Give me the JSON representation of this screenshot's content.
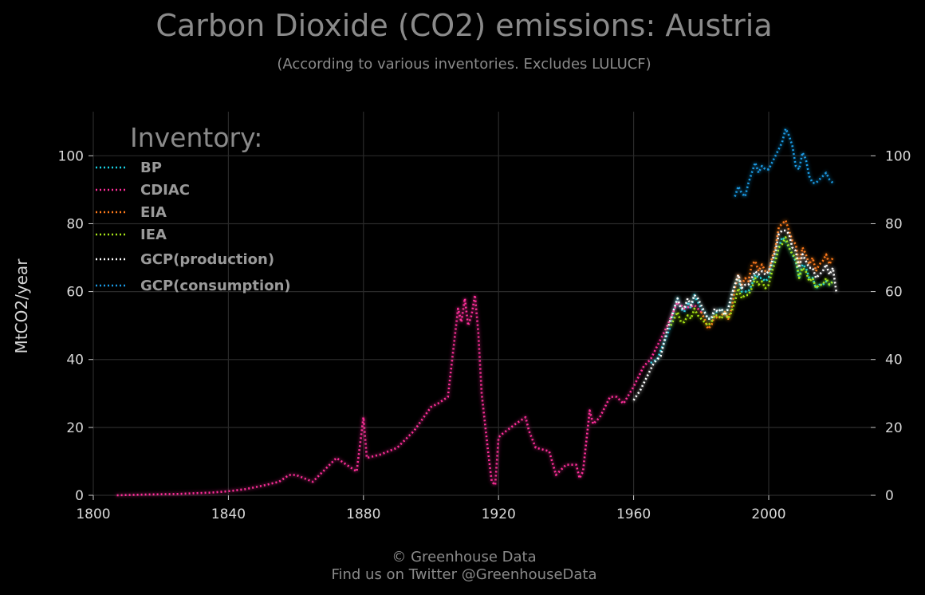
{
  "chart_data": {
    "type": "line",
    "title": "Carbon Dioxide (CO2) emissions: Austria",
    "subtitle": "(According to various inventories. Excludes LULUCF)",
    "xlabel": "",
    "ylabel": "MtCO2/year",
    "xlim": [
      1800,
      2030
    ],
    "ylim": [
      0,
      113
    ],
    "x_ticks": [
      1800,
      1840,
      1880,
      1920,
      1960,
      2000
    ],
    "y_ticks": [
      0,
      20,
      40,
      60,
      80,
      100
    ],
    "grid": true,
    "legend_title": "Inventory:",
    "legend_position": "top-left",
    "series": [
      {
        "name": "BP",
        "color": "#19d3e6",
        "x": [
          1965,
          1967,
          1969,
          1971,
          1972,
          1973,
          1974,
          1975,
          1976,
          1977,
          1978,
          1979,
          1980,
          1981,
          1982,
          1983,
          1984,
          1985,
          1986,
          1987,
          1988,
          1989,
          1990,
          1991,
          1992,
          1993,
          1994,
          1995,
          1996,
          1997,
          1998,
          1999,
          2000,
          2001,
          2002,
          2003,
          2004,
          2005,
          2006,
          2007,
          2008,
          2009,
          2010,
          2011,
          2012,
          2013,
          2014,
          2015,
          2016,
          2017,
          2018,
          2019
        ],
        "y": [
          39,
          40,
          45,
          50,
          55,
          58,
          55,
          54,
          57,
          55,
          59,
          57,
          55,
          54,
          52,
          52,
          54,
          54,
          55,
          53,
          55,
          58,
          62,
          64,
          60,
          60,
          60,
          62,
          65,
          64,
          64,
          63,
          64,
          68,
          70,
          73,
          76,
          75,
          73,
          71,
          69,
          64,
          68,
          67,
          64,
          64,
          61,
          62,
          62,
          63,
          62,
          63
        ]
      },
      {
        "name": "CDIAC",
        "color": "#ff2e9a",
        "x": [
          1807,
          1815,
          1820,
          1825,
          1830,
          1835,
          1840,
          1845,
          1850,
          1855,
          1858,
          1860,
          1865,
          1870,
          1872,
          1875,
          1878,
          1880,
          1881,
          1885,
          1890,
          1895,
          1900,
          1902,
          1905,
          1908,
          1909,
          1910,
          1911,
          1912,
          1913,
          1914,
          1915,
          1917,
          1918,
          1919,
          1920,
          1921,
          1925,
          1928,
          1929,
          1931,
          1935,
          1937,
          1938,
          1940,
          1943,
          1944,
          1945,
          1947,
          1948,
          1950,
          1953,
          1955,
          1957,
          1960,
          1963,
          1965,
          1968,
          1970,
          1973,
          1975,
          1978,
          1980
        ],
        "y": [
          0,
          0.2,
          0.3,
          0.4,
          0.6,
          0.8,
          1.2,
          1.8,
          2.8,
          4,
          6,
          6,
          4,
          9,
          11,
          9,
          7,
          23,
          11,
          12,
          14,
          19,
          26,
          27,
          29,
          55,
          51,
          58,
          50,
          53,
          59,
          48,
          30,
          12,
          4,
          3,
          17,
          18,
          21,
          23,
          19,
          14,
          13,
          6,
          7,
          9,
          9,
          5,
          7,
          25,
          21,
          23,
          29,
          29,
          27,
          32,
          38,
          40,
          46,
          50,
          57,
          55,
          56,
          54
        ]
      },
      {
        "name": "EIA",
        "color": "#ff7a1a",
        "x": [
          1980,
          1981,
          1982,
          1983,
          1984,
          1985,
          1986,
          1987,
          1988,
          1989,
          1990,
          1991,
          1992,
          1993,
          1994,
          1995,
          1996,
          1997,
          1998,
          1999,
          2000,
          2001,
          2002,
          2003,
          2004,
          2005,
          2006,
          2007,
          2008,
          2009,
          2010,
          2011,
          2012,
          2013,
          2014,
          2015,
          2016,
          2017,
          2018,
          2019
        ],
        "y": [
          54,
          52,
          49,
          50,
          53,
          52,
          53,
          54,
          52,
          55,
          61,
          65,
          62,
          64,
          63,
          68,
          69,
          66,
          68,
          66,
          66,
          70,
          73,
          79,
          80,
          81,
          78,
          75,
          74,
          68,
          73,
          71,
          68,
          70,
          66,
          68,
          69,
          71,
          68,
          70
        ]
      },
      {
        "name": "IEA",
        "color": "#a8e619",
        "x": [
          1971,
          1972,
          1973,
          1974,
          1975,
          1976,
          1977,
          1978,
          1979,
          1980,
          1981,
          1982,
          1983,
          1984,
          1985,
          1986,
          1987,
          1988,
          1989,
          1990,
          1991,
          1992,
          1993,
          1994,
          1995,
          1996,
          1997,
          1998,
          1999,
          2000,
          2001,
          2002,
          2003,
          2004,
          2005,
          2006,
          2007,
          2008,
          2009,
          2010,
          2011,
          2012,
          2013,
          2014,
          2015,
          2016,
          2017,
          2018,
          2019
        ],
        "y": [
          50,
          52,
          54,
          51,
          51,
          53,
          52,
          55,
          53,
          52,
          51,
          50,
          51,
          53,
          53,
          52,
          54,
          52,
          54,
          57,
          61,
          58,
          59,
          59,
          61,
          64,
          62,
          63,
          61,
          62,
          66,
          69,
          73,
          74,
          76,
          73,
          71,
          70,
          64,
          67,
          66,
          63,
          64,
          61,
          62,
          62,
          64,
          62,
          63
        ]
      },
      {
        "name": "GCP(production)",
        "color": "#ffffff",
        "x": [
          1960,
          1962,
          1964,
          1966,
          1968,
          1970,
          1972,
          1973,
          1974,
          1975,
          1976,
          1977,
          1978,
          1979,
          1980,
          1981,
          1982,
          1983,
          1984,
          1985,
          1986,
          1987,
          1988,
          1989,
          1990,
          1991,
          1992,
          1993,
          1994,
          1995,
          1996,
          1997,
          1998,
          1999,
          2000,
          2001,
          2002,
          2003,
          2004,
          2005,
          2006,
          2007,
          2008,
          2009,
          2010,
          2011,
          2012,
          2013,
          2014,
          2015,
          2016,
          2017,
          2018,
          2019,
          2020
        ],
        "y": [
          28,
          31,
          35,
          39,
          41,
          49,
          55,
          58,
          55,
          55,
          58,
          56,
          59,
          58,
          56,
          54,
          52,
          52,
          55,
          54,
          55,
          53,
          55,
          59,
          62,
          65,
          61,
          62,
          62,
          64,
          66,
          65,
          66,
          65,
          66,
          69,
          72,
          77,
          78,
          78,
          77,
          73,
          72,
          67,
          71,
          69,
          67,
          67,
          64,
          65,
          66,
          68,
          65,
          67,
          60
        ]
      },
      {
        "name": "GCP(consumption)",
        "color": "#1a9be6",
        "x": [
          1990,
          1991,
          1992,
          1993,
          1994,
          1995,
          1996,
          1997,
          1998,
          1999,
          2000,
          2001,
          2002,
          2003,
          2004,
          2005,
          2006,
          2007,
          2008,
          2009,
          2010,
          2011,
          2012,
          2013,
          2014,
          2015,
          2016,
          2017,
          2018,
          2019
        ],
        "y": [
          88,
          91,
          89,
          88,
          92,
          95,
          98,
          95,
          97,
          96,
          96,
          98,
          100,
          102,
          104,
          108,
          106,
          103,
          97,
          96,
          101,
          99,
          94,
          92,
          92,
          93,
          94,
          95,
          93,
          92
        ]
      }
    ]
  },
  "footer": {
    "line1": "© Greenhouse Data",
    "line2": "Find us on Twitter @GreenhouseData"
  }
}
